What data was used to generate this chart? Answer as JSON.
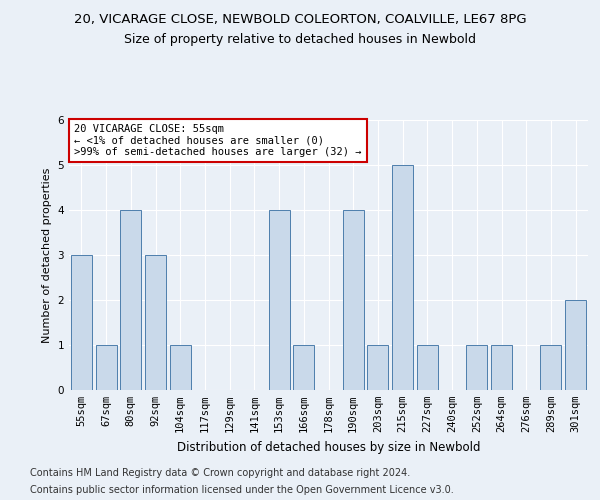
{
  "title_line1": "20, VICARAGE CLOSE, NEWBOLD COLEORTON, COALVILLE, LE67 8PG",
  "title_line2": "Size of property relative to detached houses in Newbold",
  "xlabel": "Distribution of detached houses by size in Newbold",
  "ylabel": "Number of detached properties",
  "categories": [
    "55sqm",
    "67sqm",
    "80sqm",
    "92sqm",
    "104sqm",
    "117sqm",
    "129sqm",
    "141sqm",
    "153sqm",
    "166sqm",
    "178sqm",
    "190sqm",
    "203sqm",
    "215sqm",
    "227sqm",
    "240sqm",
    "252sqm",
    "264sqm",
    "276sqm",
    "289sqm",
    "301sqm"
  ],
  "values": [
    3,
    1,
    4,
    3,
    1,
    0,
    0,
    0,
    4,
    1,
    0,
    4,
    1,
    5,
    1,
    0,
    1,
    1,
    0,
    1,
    2
  ],
  "bar_color": "#c9d9ea",
  "bar_edge_color": "#4d7eac",
  "annotation_box_text": "20 VICARAGE CLOSE: 55sqm\n← <1% of detached houses are smaller (0)\n>99% of semi-detached houses are larger (32) →",
  "annotation_box_color": "#ffffff",
  "annotation_box_edge_color": "#cc0000",
  "ylim": [
    0,
    6
  ],
  "yticks": [
    0,
    1,
    2,
    3,
    4,
    5,
    6
  ],
  "footer_line1": "Contains HM Land Registry data © Crown copyright and database right 2024.",
  "footer_line2": "Contains public sector information licensed under the Open Government Licence v3.0.",
  "bg_color": "#eaf0f7",
  "plot_bg_color": "#eaf0f7",
  "grid_color": "#ffffff",
  "title1_fontsize": 9.5,
  "title2_fontsize": 9,
  "xlabel_fontsize": 8.5,
  "ylabel_fontsize": 8,
  "tick_fontsize": 7.5,
  "footer_fontsize": 7,
  "annotation_fontsize": 7.5
}
